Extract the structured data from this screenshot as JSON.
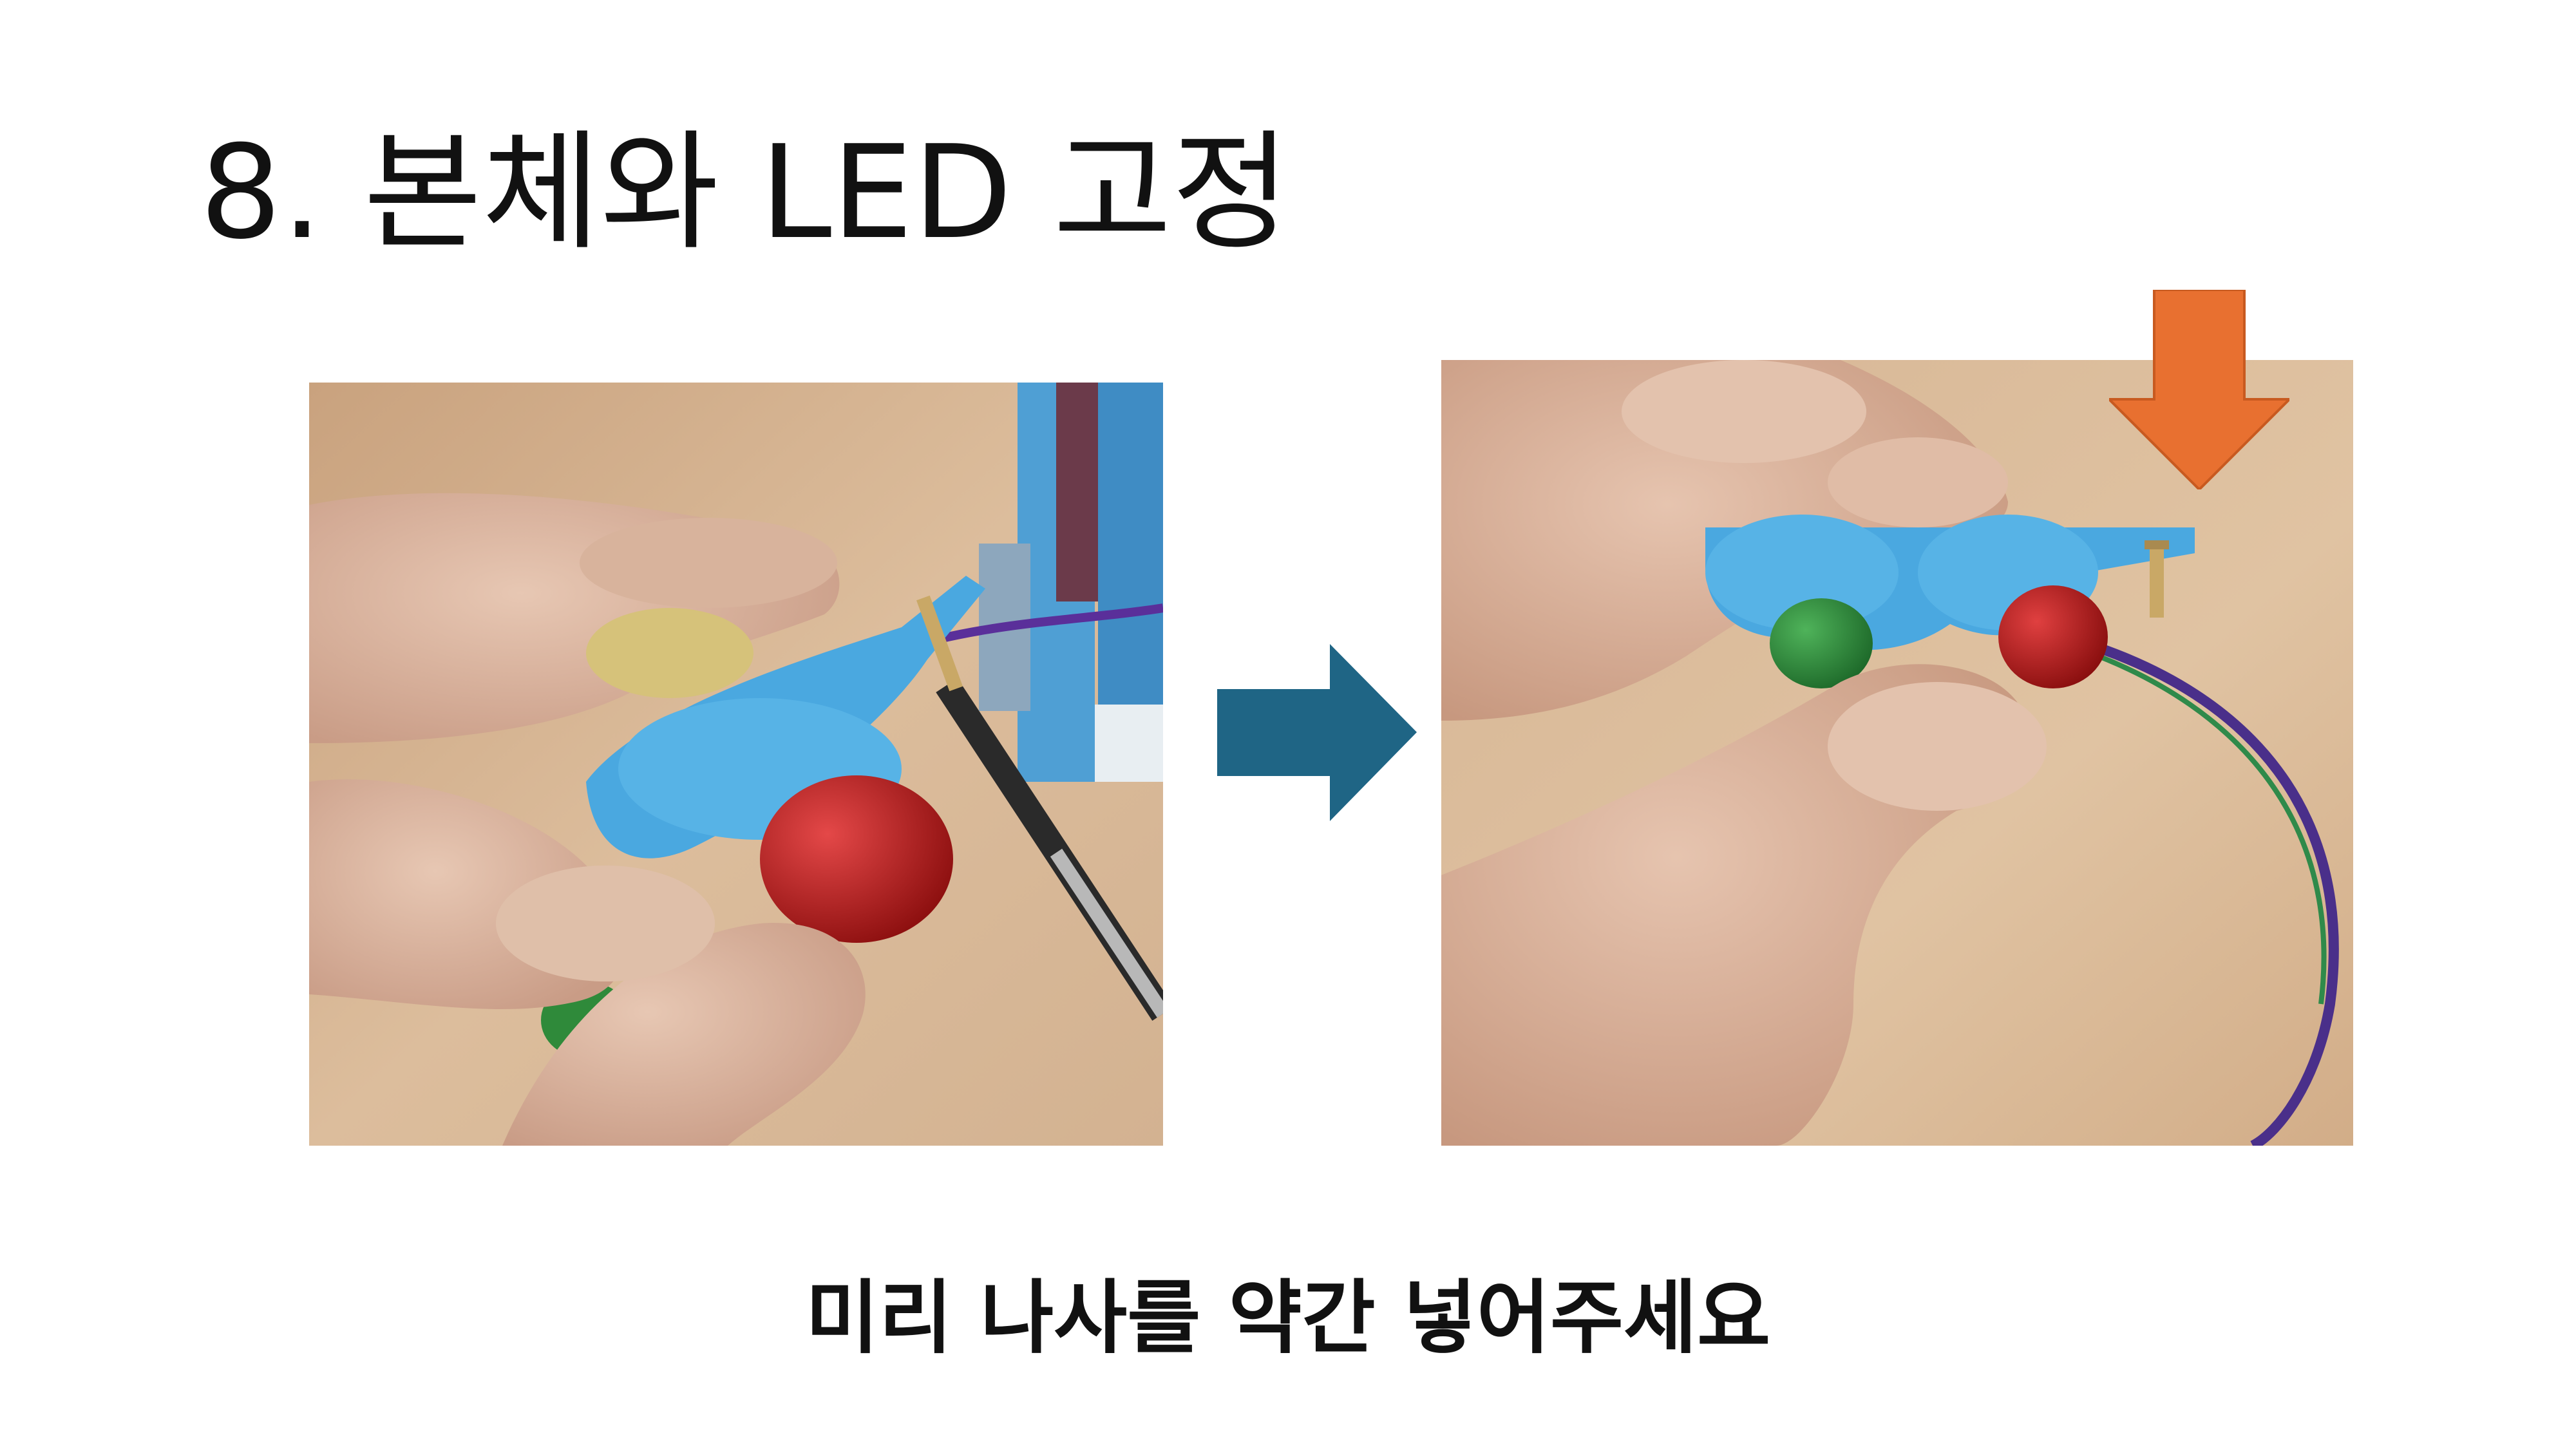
{
  "slide": {
    "title": "8. 본체와 LED 고정",
    "caption": "미리 나사를 약간 넣어주세요"
  },
  "colors": {
    "background": "#ffffff",
    "text": "#111111",
    "right_arrow": "#1f6585",
    "down_arrow": "#e87030",
    "part_blue": "#4aa8e0",
    "led_red": "#b81e1e",
    "led_green": "#2f8a3a",
    "table_wood": "#d6b594"
  },
  "photos": [
    {
      "depicts": "photo"
    },
    {
      "depicts": "photo"
    }
  ],
  "icons": {
    "right_arrow": "arrow-right-icon",
    "down_arrow": "arrow-down-icon"
  }
}
